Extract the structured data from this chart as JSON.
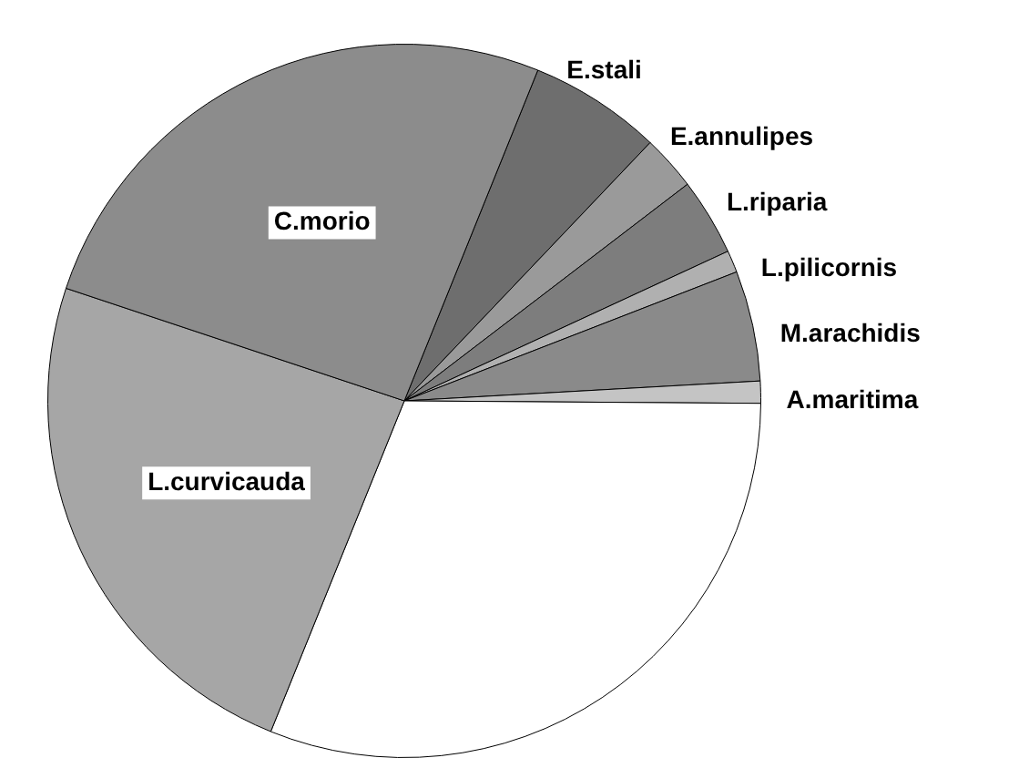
{
  "chart_data": {
    "type": "pie",
    "categories": [
      "E.stali",
      "E.annulipes",
      "L.riparia",
      "L.pilicornis",
      "M.arachidis",
      "A.maritima",
      null,
      "L.curvicauda",
      "C.morio"
    ],
    "values": [
      6,
      2.5,
      3.5,
      1,
      5,
      1,
      31,
      24,
      26
    ],
    "colors": [
      "#6e6e6e",
      "#9a9a9a",
      "#7d7d7d",
      "#b0b0b0",
      "#8a8a8a",
      "#c4c4c4",
      "#ffffff",
      "#a6a6a6",
      "#8c8c8c"
    ],
    "legend": false
  }
}
